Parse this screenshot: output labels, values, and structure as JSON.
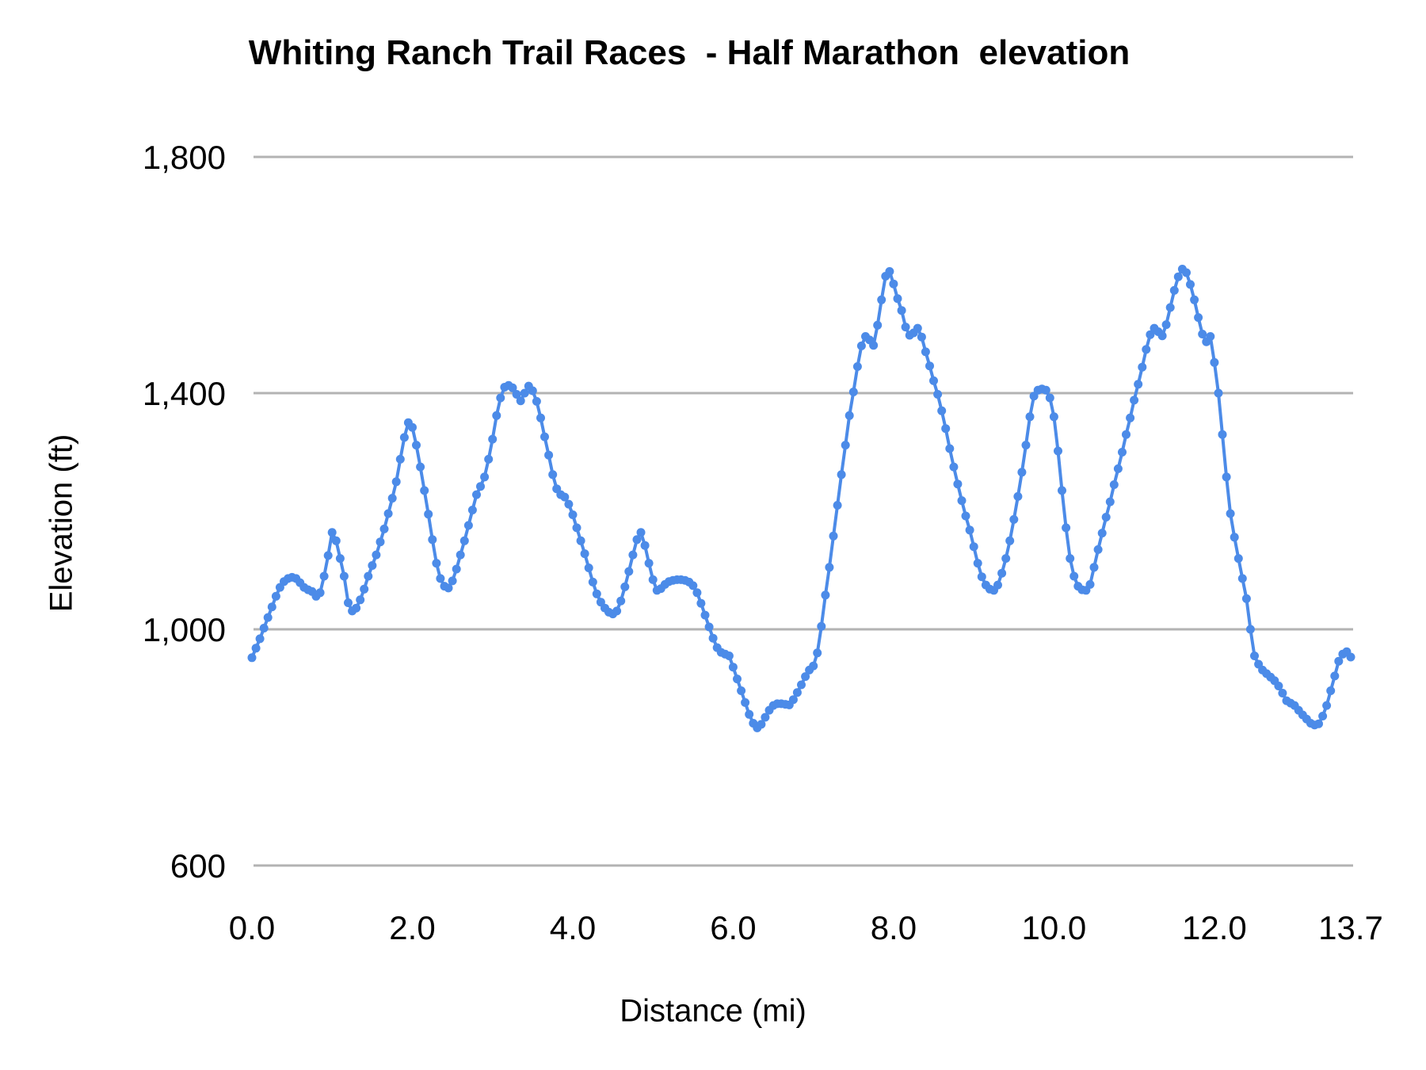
{
  "figure": {
    "background": "#ffffff",
    "title": "Whiting Ranch Trail Races  - Half Marathon  elevation",
    "title_color": "#000000"
  },
  "chart_data": {
    "type": "line",
    "title": "Whiting Ranch Trail Races  - Half Marathon  elevation",
    "xlabel": "Distance (mi)",
    "ylabel": "Elevation (ft)",
    "xlim": [
      0,
      13.7
    ],
    "ylim": [
      600,
      1800
    ],
    "grid": "horizontal-only",
    "legend": "none",
    "y_gridlines": [
      1800,
      1400,
      1000,
      600
    ],
    "y_tick_labels": [
      "1,800",
      "1,400",
      "1,000",
      "600"
    ],
    "x_tick_values": [
      0,
      2,
      4,
      6,
      8,
      10,
      12,
      13.7
    ],
    "x_tick_labels": [
      "0.0",
      "2.0",
      "4.0",
      "6.0",
      "8.0",
      "10.0",
      "12.0",
      "13.7"
    ],
    "gridline_color": "#b3b3b3",
    "marker": "circle",
    "x_start": 0,
    "x_step": 0.05,
    "series": [
      {
        "name": "elevation",
        "color": "#4c8be8",
        "values": [
          952,
          968,
          984,
          1002,
          1020,
          1038,
          1056,
          1071,
          1081,
          1086,
          1088,
          1086,
          1079,
          1071,
          1067,
          1064,
          1056,
          1062,
          1090,
          1125,
          1164,
          1150,
          1120,
          1090,
          1045,
          1031,
          1036,
          1050,
          1068,
          1090,
          1108,
          1126,
          1148,
          1170,
          1196,
          1222,
          1250,
          1288,
          1325,
          1350,
          1342,
          1312,
          1275,
          1235,
          1195,
          1152,
          1112,
          1086,
          1073,
          1070,
          1082,
          1102,
          1126,
          1150,
          1176,
          1202,
          1228,
          1242,
          1258,
          1288,
          1322,
          1362,
          1392,
          1410,
          1413,
          1409,
          1398,
          1387,
          1400,
          1412,
          1404,
          1386,
          1358,
          1326,
          1295,
          1262,
          1238,
          1228,
          1224,
          1212,
          1194,
          1172,
          1150,
          1128,
          1104,
          1080,
          1060,
          1046,
          1036,
          1029,
          1026,
          1031,
          1048,
          1072,
          1098,
          1126,
          1152,
          1164,
          1142,
          1112,
          1084,
          1066,
          1069,
          1076,
          1081,
          1083,
          1084,
          1084,
          1083,
          1080,
          1074,
          1062,
          1044,
          1024,
          1004,
          985,
          969,
          961,
          958,
          955,
          936,
          916,
          896,
          876,
          856,
          841,
          833,
          839,
          851,
          863,
          871,
          874,
          874,
          873,
          872,
          881,
          893,
          906,
          920,
          931,
          938,
          960,
          1005,
          1058,
          1105,
          1158,
          1210,
          1262,
          1312,
          1362,
          1402,
          1445,
          1480,
          1496,
          1490,
          1481,
          1515,
          1558,
          1598,
          1606,
          1585,
          1560,
          1540,
          1512,
          1498,
          1502,
          1510,
          1495,
          1470,
          1446,
          1421,
          1398,
          1370,
          1340,
          1306,
          1275,
          1246,
          1218,
          1192,
          1168,
          1140,
          1112,
          1089,
          1075,
          1068,
          1066,
          1075,
          1095,
          1120,
          1150,
          1186,
          1225,
          1266,
          1312,
          1360,
          1395,
          1405,
          1407,
          1405,
          1392,
          1360,
          1302,
          1235,
          1172,
          1120,
          1090,
          1073,
          1067,
          1066,
          1076,
          1105,
          1135,
          1163,
          1190,
          1216,
          1245,
          1272,
          1300,
          1330,
          1358,
          1388,
          1415,
          1444,
          1474,
          1499,
          1510,
          1504,
          1497,
          1516,
          1545,
          1574,
          1597,
          1610,
          1604,
          1584,
          1558,
          1528,
          1500,
          1487,
          1496,
          1452,
          1400,
          1330,
          1258,
          1196,
          1156,
          1120,
          1086,
          1052,
          1000,
          955,
          941,
          931,
          925,
          919,
          913,
          904,
          892,
          879,
          875,
          871,
          863,
          855,
          848,
          841,
          838,
          840,
          853,
          871,
          896,
          921,
          946,
          958,
          962,
          953
        ]
      }
    ]
  }
}
